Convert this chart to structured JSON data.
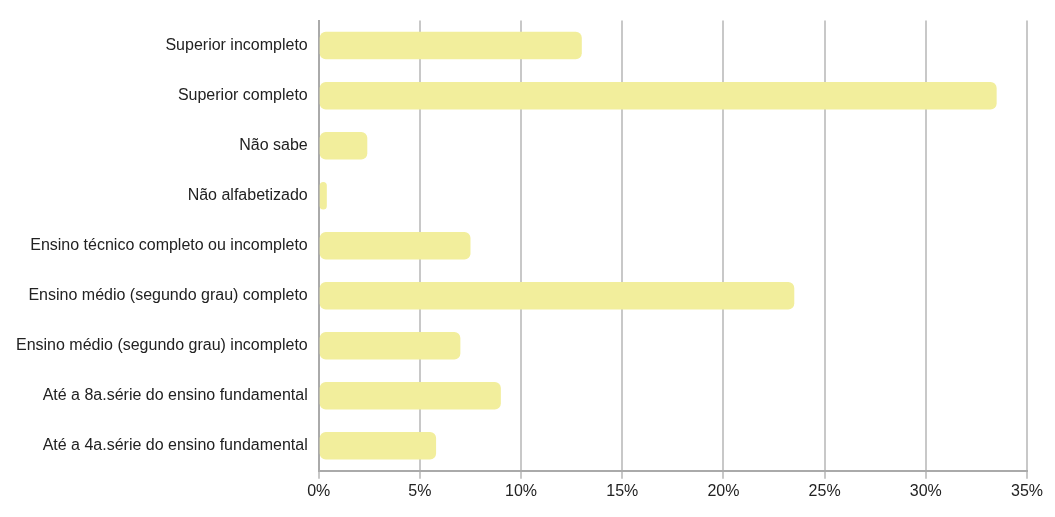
{
  "chart_data": {
    "type": "bar",
    "orientation": "horizontal",
    "categories": [
      "Superior incompleto",
      "Superior completo",
      "Não sabe",
      "Não alfabetizado",
      "Ensino técnico completo ou incompleto",
      "Ensino médio (segundo grau) completo",
      "Ensino médio (segundo grau) incompleto",
      "Até a 8a.série do ensino fundamental",
      "Até a 4a.série do ensino fundamental"
    ],
    "values": [
      13,
      33.5,
      2.4,
      0.4,
      7.5,
      23.5,
      7,
      9,
      5.8
    ],
    "color": "#f2ee9c",
    "xlim": [
      0,
      35
    ],
    "xticks": [
      {
        "value": 0,
        "label": "0%"
      },
      {
        "value": 5,
        "label": "5%"
      },
      {
        "value": 10,
        "label": "10%"
      },
      {
        "value": 15,
        "label": "15%"
      },
      {
        "value": 20,
        "label": "20%"
      },
      {
        "value": 25,
        "label": "25%"
      },
      {
        "value": 30,
        "label": "30%"
      },
      {
        "value": 35,
        "label": "35%"
      }
    ],
    "grid": "x",
    "legend": false
  }
}
